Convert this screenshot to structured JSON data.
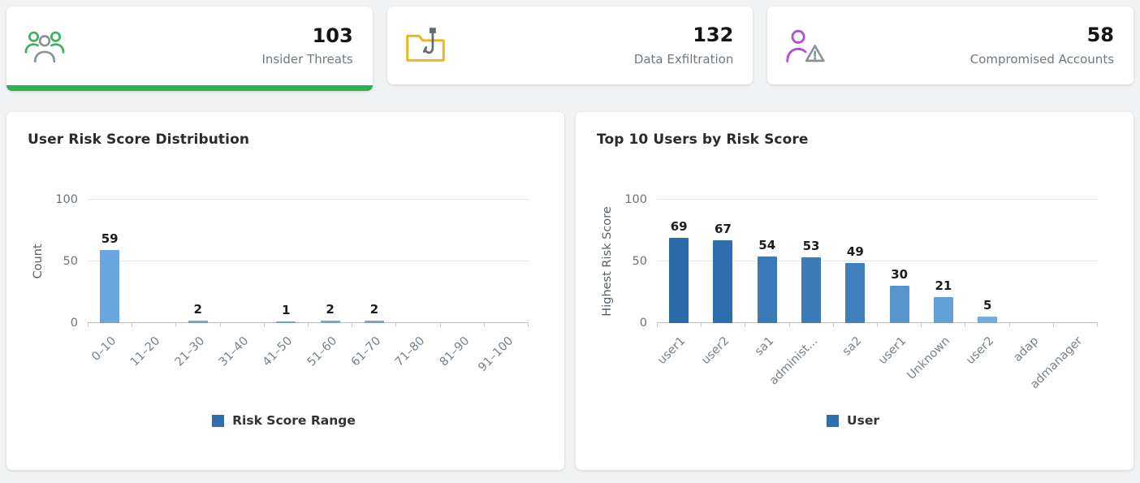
{
  "colors": {
    "active_card_accent": "#2bb24c",
    "insider_icon_green": "#3cb15f",
    "exfiltration_icon_yellow": "#eab51e",
    "compromised_icon_purple": "#b44fd0",
    "icon_gray": "#8a9298",
    "legend_blue": "#2e6fb0"
  },
  "kpi_cards": [
    {
      "value": "103",
      "label": "Insider Threats",
      "icon": "insider-threats-group-icon",
      "active": true
    },
    {
      "value": "132",
      "label": "Data Exfiltration",
      "icon": "phishing-folder-icon",
      "active": false
    },
    {
      "value": "58",
      "label": "Compromised Accounts",
      "icon": "compromised-user-warning-icon",
      "active": false
    }
  ],
  "chart_data": [
    {
      "type": "bar",
      "title": "User Risk Score Distribution",
      "categories": [
        "0–10",
        "11–20",
        "21–30",
        "31–40",
        "41–50",
        "51–60",
        "61–70",
        "71–80",
        "81–90",
        "91–100"
      ],
      "values": [
        59,
        0,
        2,
        0,
        1,
        2,
        2,
        0,
        0,
        0
      ],
      "bar_color": "#6aa7e0",
      "xlabel": "Risk Score Range",
      "ylabel": "Count",
      "ylim": [
        0,
        100
      ],
      "yticks": [
        0,
        50,
        100
      ],
      "grid": true,
      "legend_position": "bottom",
      "legend": [
        {
          "label": "Risk Score Range",
          "color": "#2e6fb0"
        }
      ]
    },
    {
      "type": "bar",
      "title": "Top 10 Users by Risk Score",
      "categories": [
        "user1",
        "user2",
        "sa1",
        "administ...",
        "sa2",
        "user1",
        "Unknown",
        "user2",
        "adap",
        "admanager"
      ],
      "values": [
        69,
        67,
        54,
        53,
        49,
        30,
        21,
        5,
        0,
        0
      ],
      "bar_colors": [
        "#2a6cab",
        "#2d6fae",
        "#3a7ab8",
        "#3b7bb9",
        "#4180bd",
        "#5793cd",
        "#61a0d8",
        "#6fade2",
        "#7ab5e8",
        "#7ab5e8"
      ],
      "xlabel": "User",
      "ylabel": "Highest Risk Score",
      "ylim": [
        0,
        100
      ],
      "yticks": [
        0,
        50,
        100
      ],
      "grid": true,
      "legend_position": "bottom",
      "legend": [
        {
          "label": "User",
          "color": "#2e6fb0"
        }
      ]
    }
  ]
}
